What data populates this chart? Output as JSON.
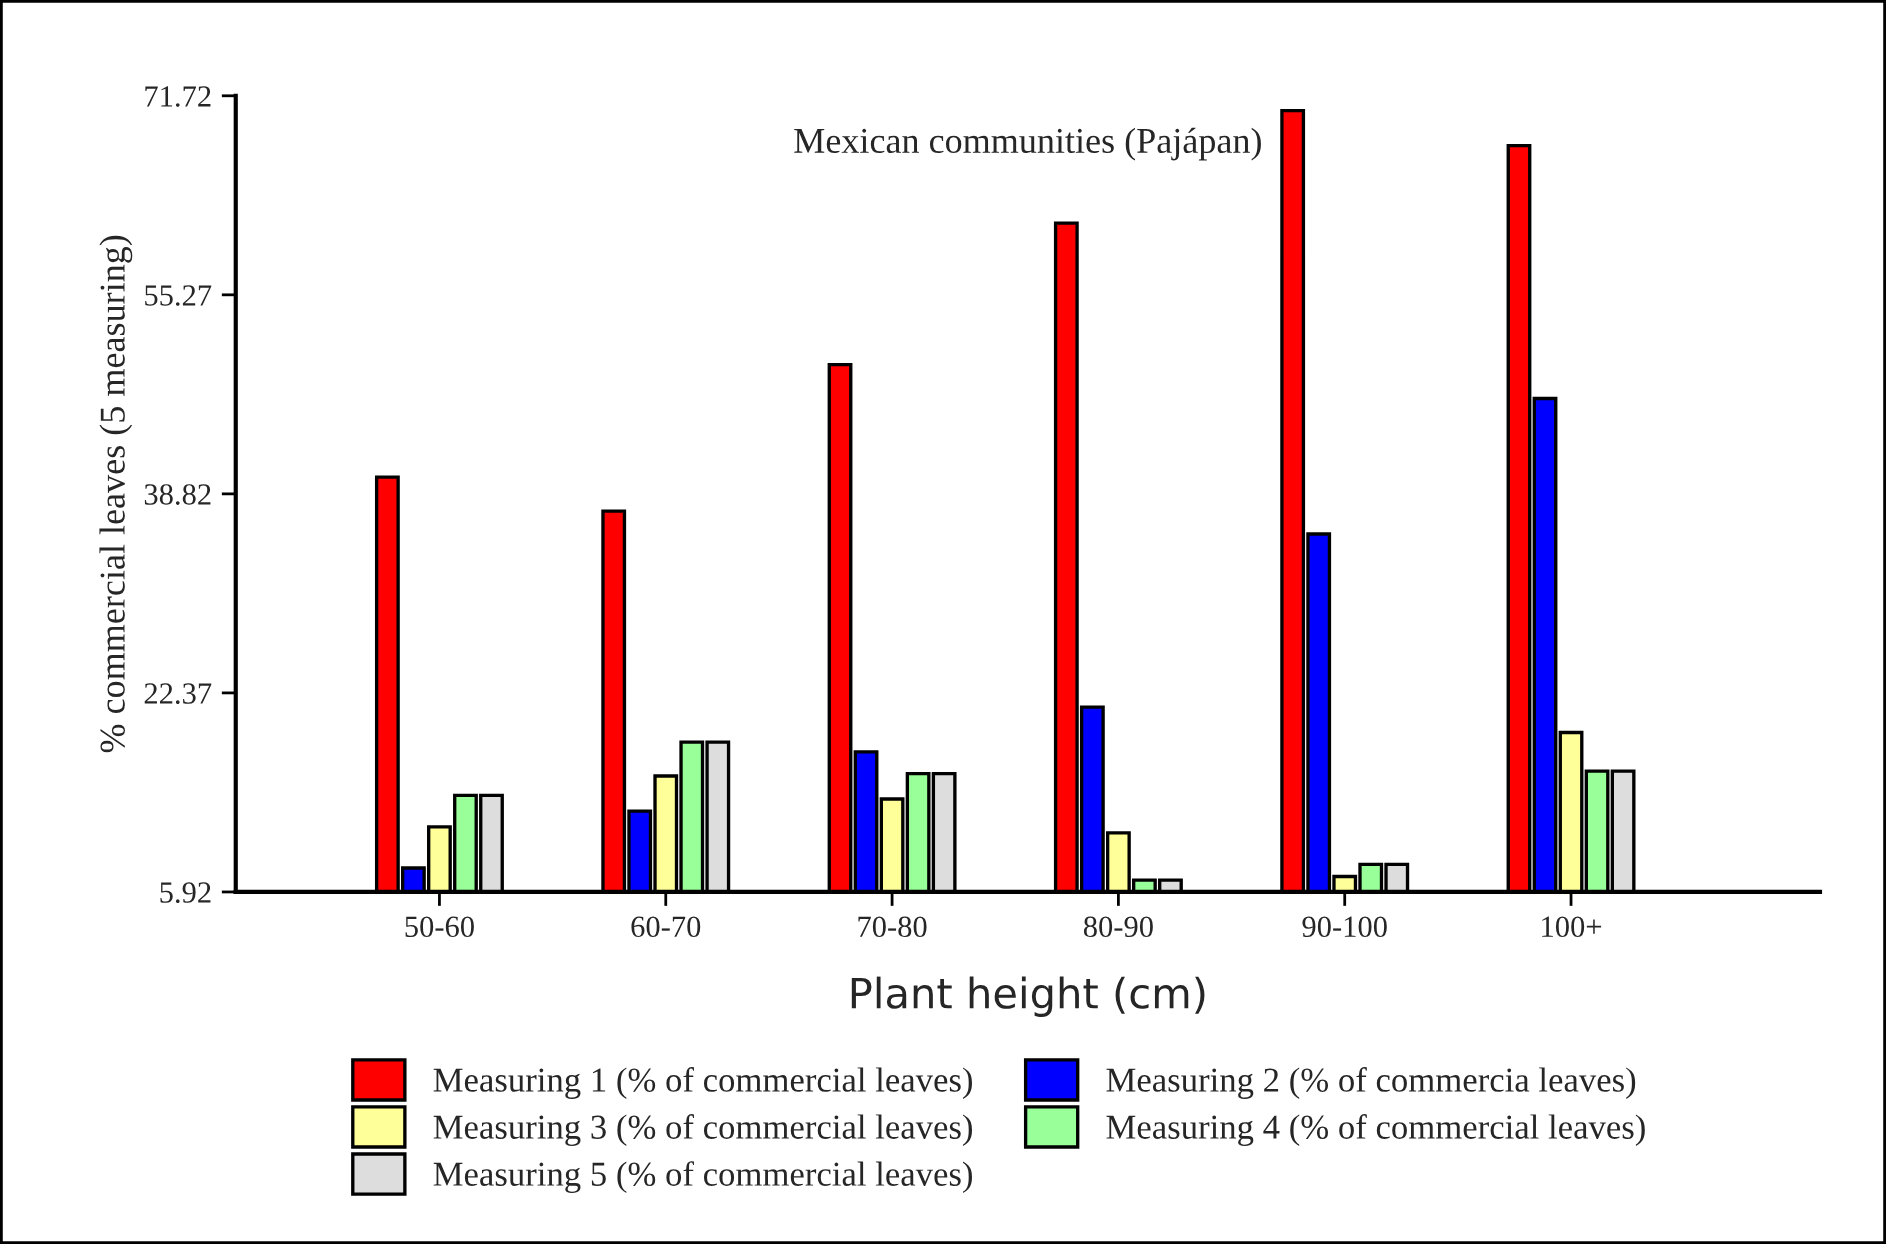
{
  "chart_data": {
    "type": "bar",
    "title": "Mexican communities (Pajápan)",
    "xlabel": "Plant height (cm)",
    "ylabel": "% commercial leaves (5 measuring)",
    "categories": [
      "50-60",
      "60-70",
      "70-80",
      "80-90",
      "90-100",
      "100+"
    ],
    "series": [
      {
        "name": "Measuring 1 (% of commercial leaves)",
        "color": "#ff0000",
        "values": [
          40.2,
          37.4,
          49.5,
          61.2,
          70.5,
          67.6
        ]
      },
      {
        "name": "Measuring 2 (% of commercia leaves)",
        "color": "#0000ff",
        "values": [
          7.9,
          12.6,
          17.5,
          21.2,
          35.5,
          46.7
        ]
      },
      {
        "name": "Measuring 3 (% of commercial leaves)",
        "color": "#ffff99",
        "values": [
          11.3,
          15.5,
          13.6,
          10.8,
          7.2,
          19.1
        ]
      },
      {
        "name": "Measuring 4 (% of commercial leaves)",
        "color": "#99ff99",
        "values": [
          13.9,
          18.3,
          15.7,
          6.9,
          8.2,
          15.9
        ]
      },
      {
        "name": "Measuring 5 (% of commercial leaves)",
        "color": "#dddddd",
        "values": [
          13.9,
          18.3,
          15.7,
          6.9,
          8.2,
          15.9
        ]
      }
    ],
    "ylim": [
      5.92,
      71.72
    ],
    "yticks": [
      5.92,
      22.37,
      38.82,
      55.27,
      71.72
    ],
    "grid": false,
    "legend": "bottom"
  }
}
